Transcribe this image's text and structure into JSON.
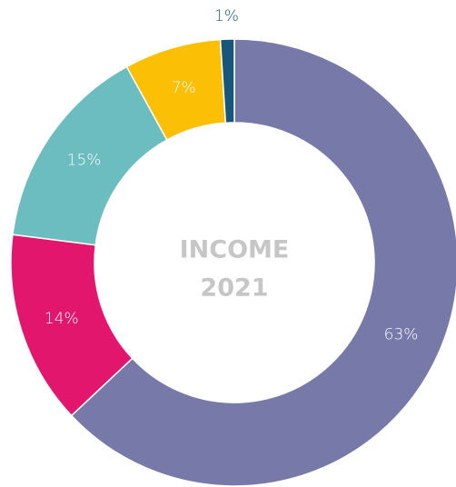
{
  "chart_data": {
    "type": "donut",
    "center_lines": [
      "INCOME",
      "2021"
    ],
    "categories": [
      null,
      null,
      null,
      null,
      null
    ],
    "values": [
      63,
      14,
      15,
      7,
      1
    ],
    "value_labels": [
      "63%",
      "14%",
      "15%",
      "7%",
      "1%"
    ],
    "colors": [
      "#7779a8",
      "#e3166e",
      "#6bbdc0",
      "#fbbf06",
      "#19567c"
    ]
  }
}
